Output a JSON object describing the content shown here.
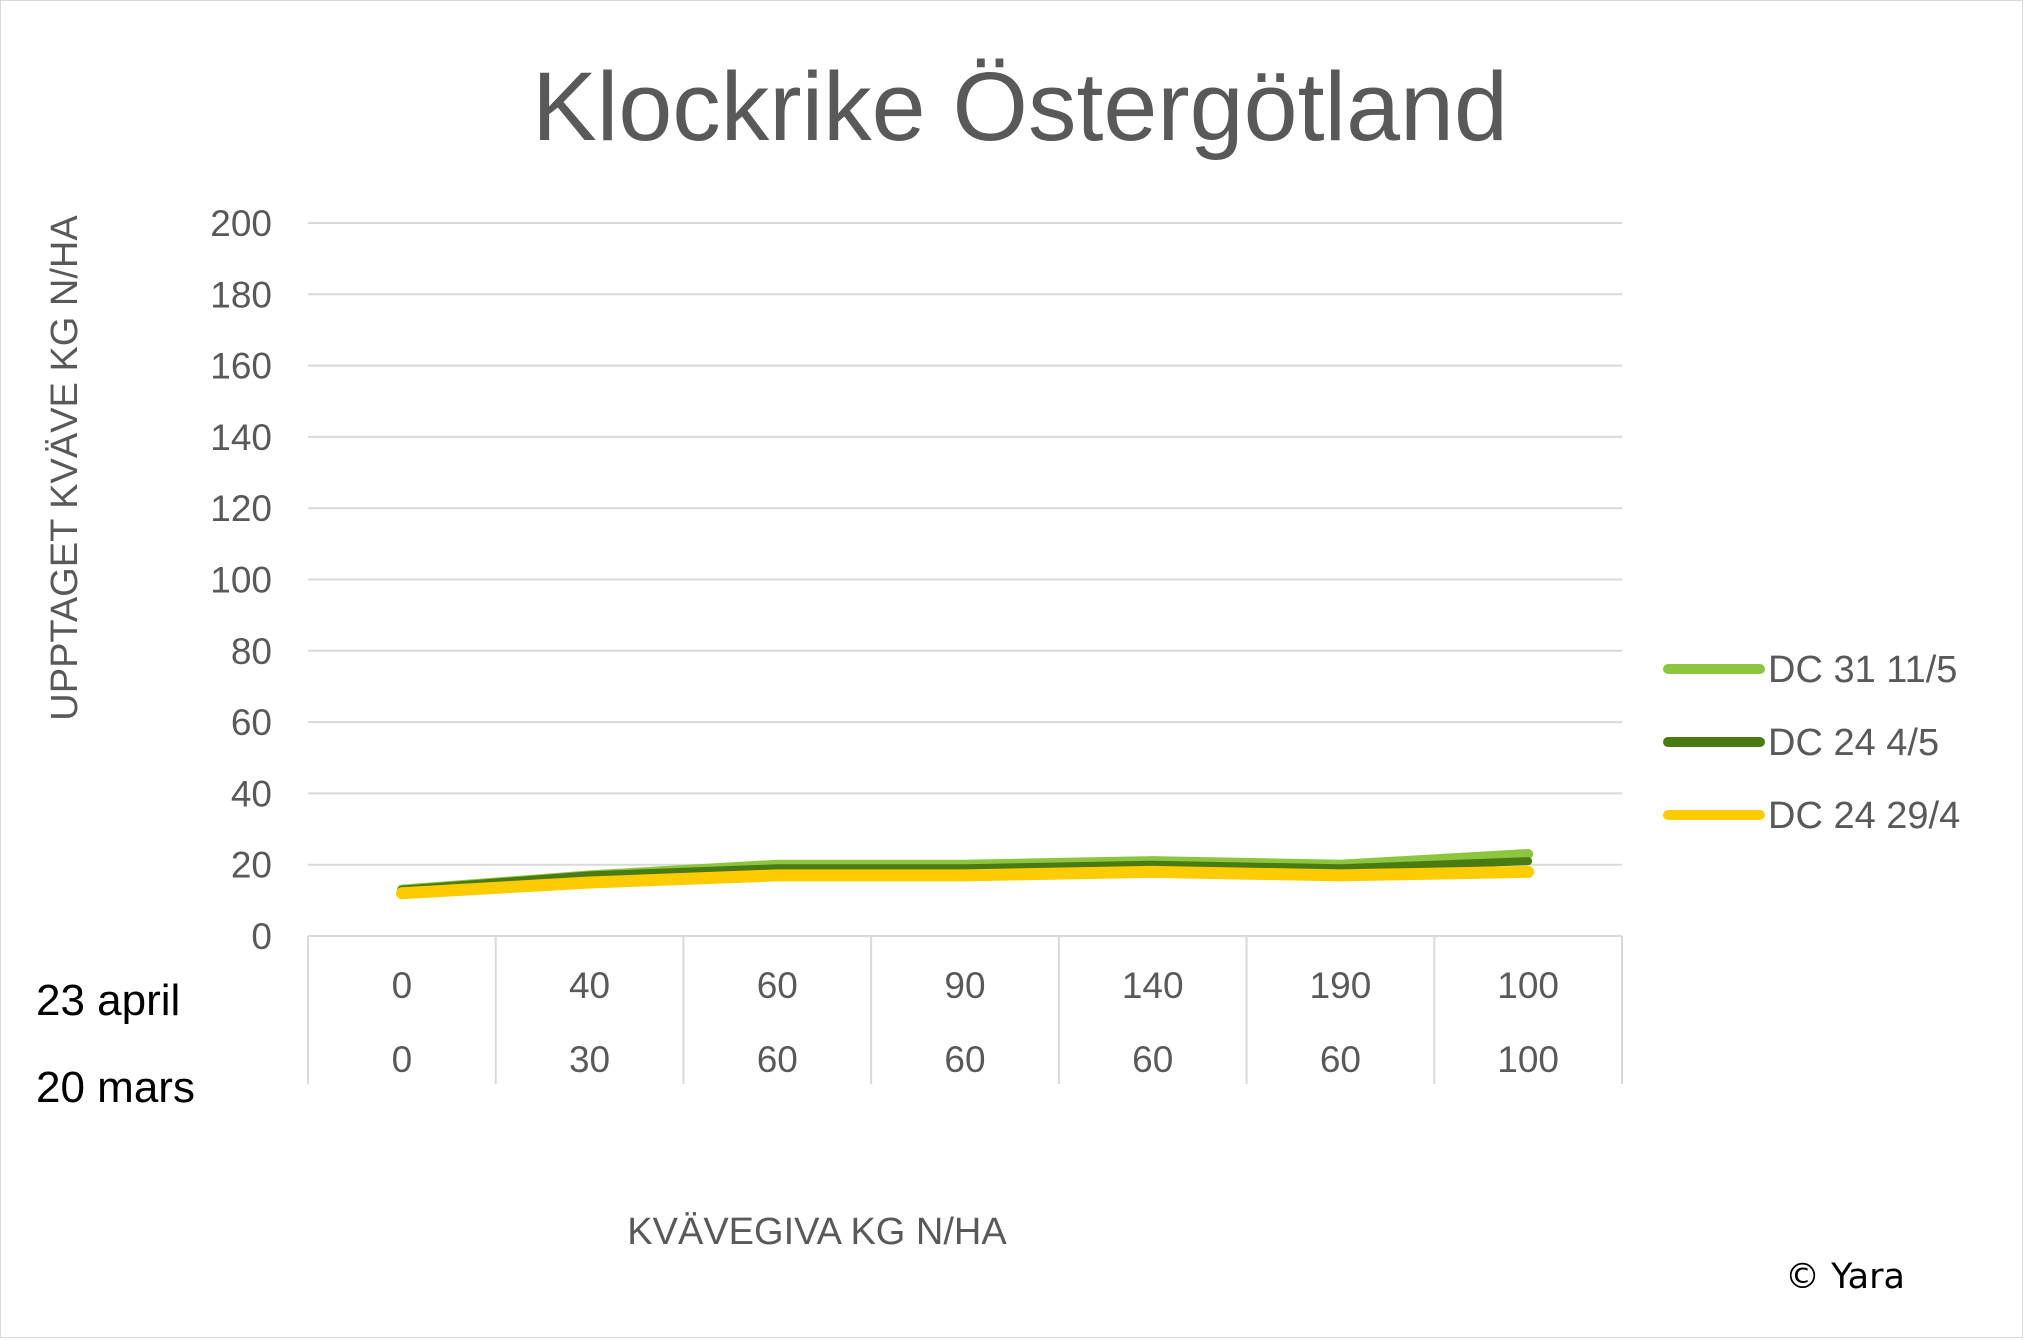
{
  "chart_data": {
    "type": "line",
    "title": "Klockrike Östergötland",
    "ylabel": "UPPTAGET KVÄVE KG N/HA",
    "xlabel": "KVÄVEGIVA  KG N/HA",
    "ylim": [
      0,
      200
    ],
    "yticks": [
      "0",
      "20",
      "40",
      "60",
      "80",
      "100",
      "120",
      "140",
      "160",
      "180",
      "200"
    ],
    "grid": true,
    "legend_position": "right",
    "category_rows": [
      {
        "label": "23 april",
        "values": [
          "0",
          "40",
          "60",
          "90",
          "140",
          "190",
          "100"
        ]
      },
      {
        "label": "20 mars",
        "values": [
          "0",
          "30",
          "60",
          "60",
          "60",
          "60",
          "100"
        ]
      }
    ],
    "series": [
      {
        "name": "DC 31 11/5",
        "color": "#8cc63f",
        "values": [
          13,
          17,
          20,
          20,
          21,
          20,
          23
        ]
      },
      {
        "name": "DC 24 4/5",
        "color": "#4a7a12",
        "values": [
          13,
          17,
          19,
          19,
          20,
          19,
          21
        ]
      },
      {
        "name": "DC 24 29/4",
        "color": "#ffcc00",
        "values": [
          12,
          15,
          17,
          17,
          18,
          17,
          18
        ]
      }
    ]
  },
  "watermark": "© Yara"
}
